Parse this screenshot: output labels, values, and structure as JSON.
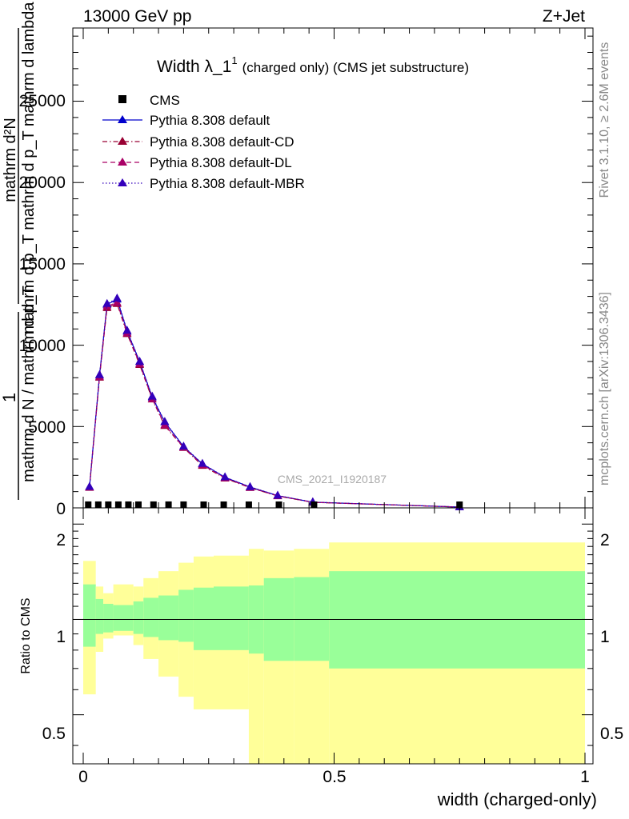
{
  "header": {
    "left_label": "13000 GeV pp",
    "right_label": "Z+Jet"
  },
  "title": {
    "main": "Width λ_1",
    "superscript": "1",
    "suffix": "(charged only) (CMS jet substructure)"
  },
  "side_labels": {
    "rivet": "Rivet 3.1.10, ≥ 2.6M events",
    "mcplots": "mcplots.cern.ch [arXiv:1306.3436]"
  },
  "watermark": "CMS_2021_I1920187",
  "axes": {
    "x_label": "width (charged-only)",
    "main_y_label_top": "mathrm d²N",
    "main_y_label_bottom": "mathrm d p_T mathrm d p_T mathrm d lambda",
    "main_y_prefix_top": "1",
    "main_y_prefix_bottom": "mathrm d N / mathrm d p_T",
    "ratio_y_label": "Ratio to CMS",
    "main_y_ticks": [
      "0",
      "5000",
      "10000",
      "15000",
      "20000",
      "25000"
    ],
    "ratio_y_ticks": [
      "0.5",
      "1",
      "2"
    ],
    "x_ticks": [
      "0",
      "0.5",
      "1"
    ]
  },
  "colors": {
    "cms": "#000000",
    "default": "#0000cc",
    "cd": "#990033",
    "dl": "#aa0066",
    "mbr": "#3300bb",
    "band_inner": "#99ff99",
    "band_outer": "#ffff99"
  },
  "chart_data": {
    "type": "line",
    "xlim": [
      -0.02,
      1.01
    ],
    "ylim": [
      0,
      29500
    ],
    "ratio_ylim": [
      0.35,
      2.25
    ],
    "bins": [
      0,
      0.025,
      0.05,
      0.075,
      0.1,
      0.125,
      0.15,
      0.175,
      0.2,
      0.225,
      0.25,
      0.3,
      0.35,
      0.4,
      0.45,
      0.5,
      0.55,
      0.6,
      0.65,
      0.7,
      0.75,
      0.8,
      0.85,
      0.9,
      0.95,
      1.0
    ],
    "band_edges": [
      0,
      0.025,
      0.04,
      0.06,
      0.1,
      0.12,
      0.15,
      0.19,
      0.22,
      0.26,
      0.33,
      0.36,
      0.42,
      0.49,
      1.0
    ],
    "band_inner_lo": [
      0.82,
      0.9,
      0.91,
      0.92,
      0.9,
      0.88,
      0.86,
      0.85,
      0.8,
      0.8,
      0.78,
      0.74,
      0.74,
      0.7
    ],
    "band_inner_hi": [
      1.29,
      1.16,
      1.12,
      1.11,
      1.14,
      1.17,
      1.19,
      1.24,
      1.26,
      1.27,
      1.28,
      1.35,
      1.36,
      1.42
    ],
    "band_outer_lo": [
      0.58,
      0.79,
      0.87,
      0.89,
      0.83,
      0.75,
      0.66,
      0.57,
      0.52,
      0.52,
      0.35,
      0.35,
      0.35,
      0.35
    ],
    "band_outer_hi": [
      1.53,
      1.27,
      1.21,
      1.29,
      1.27,
      1.35,
      1.42,
      1.51,
      1.58,
      1.59,
      1.67,
      1.65,
      1.67,
      1.75
    ],
    "cms_points": {
      "x": [
        0.01,
        0.03,
        0.05,
        0.07,
        0.09,
        0.11,
        0.14,
        0.17,
        0.2,
        0.24,
        0.28,
        0.33,
        0.39,
        0.46,
        0.75
      ],
      "y": [
        200,
        200,
        200,
        200,
        200,
        200,
        200,
        200,
        200,
        150,
        150,
        150,
        100,
        50,
        20
      ]
    },
    "series": [
      {
        "name": "Pythia 8.308 default",
        "style": "solid",
        "x": [
          0.0125,
          0.0325,
          0.0475,
          0.0675,
          0.0875,
          0.1125,
          0.1375,
          0.1625,
          0.2,
          0.2375,
          0.2825,
          0.3325,
          0.3875,
          0.4575,
          0.75
        ],
        "y": [
          1280,
          8150,
          12500,
          12820,
          10850,
          8980,
          6800,
          5280,
          3760,
          2700,
          1880,
          1280,
          750,
          350,
          50
        ]
      },
      {
        "name": "Pythia 8.308 default-CD",
        "style": "dashdot",
        "x": [
          0.0125,
          0.0325,
          0.0475,
          0.0675,
          0.0875,
          0.1125,
          0.1375,
          0.1625,
          0.2,
          0.2375,
          0.2825,
          0.3325,
          0.3875,
          0.4575,
          0.75
        ],
        "y": [
          1250,
          8020,
          12300,
          12550,
          10700,
          8800,
          6680,
          5050,
          3700,
          2600,
          1820,
          1240,
          730,
          340,
          50
        ]
      },
      {
        "name": "Pythia 8.308 default-DL",
        "style": "dash",
        "x": [
          0.0125,
          0.0325,
          0.0475,
          0.0675,
          0.0875,
          0.1125,
          0.1375,
          0.1625,
          0.2,
          0.2375,
          0.2825,
          0.3325,
          0.3875,
          0.4575,
          0.75
        ],
        "y": [
          1260,
          8060,
          12400,
          12620,
          10750,
          8850,
          6700,
          5100,
          3720,
          2640,
          1840,
          1250,
          735,
          345,
          50
        ]
      },
      {
        "name": "Pythia 8.308 default-MBR",
        "style": "dotted",
        "x": [
          0.0125,
          0.0325,
          0.0475,
          0.0675,
          0.0875,
          0.1125,
          0.1375,
          0.1625,
          0.2,
          0.2375,
          0.2825,
          0.3325,
          0.3875,
          0.4575,
          0.75
        ],
        "y": [
          1300,
          8180,
          12550,
          12880,
          10900,
          9000,
          6850,
          5300,
          3780,
          2720,
          1890,
          1290,
          760,
          355,
          50
        ]
      }
    ],
    "legend": [
      "CMS",
      "Pythia 8.308 default",
      "Pythia 8.308 default-CD",
      "Pythia 8.308 default-DL",
      "Pythia 8.308 default-MBR"
    ]
  }
}
